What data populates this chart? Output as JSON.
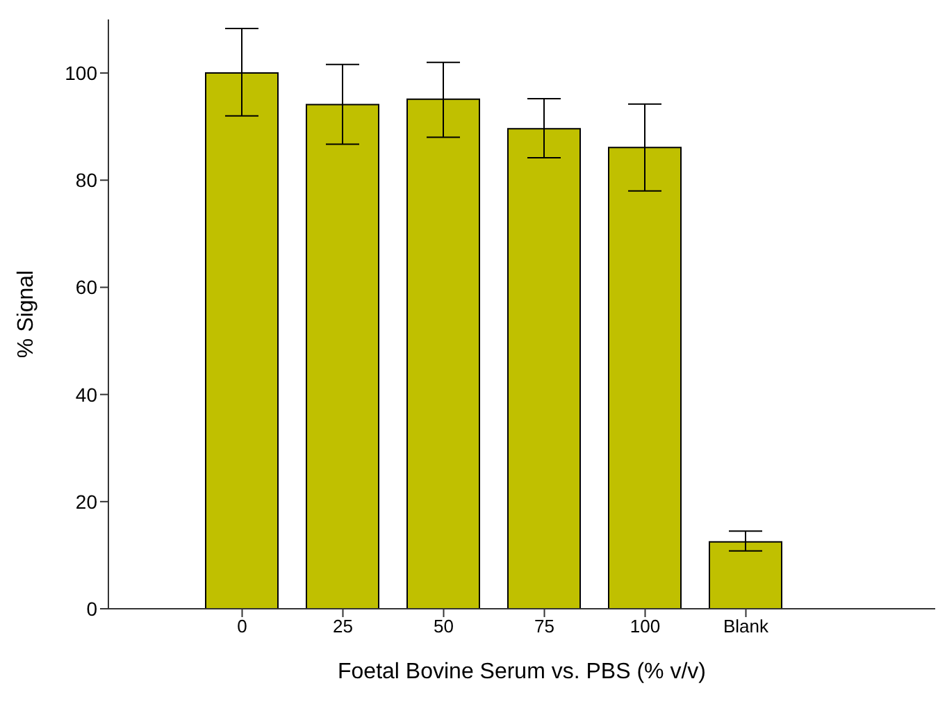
{
  "chart_data": {
    "type": "bar",
    "xlabel": "Foetal Bovine Serum vs. PBS (% v/v)",
    "ylabel": "% Signal",
    "categories": [
      "0",
      "25",
      "50",
      "75",
      "100",
      "Blank"
    ],
    "values": [
      100,
      94.1,
      95.1,
      89.6,
      86.1,
      12.5
    ],
    "errors": [
      [
        92,
        108.3
      ],
      [
        86.7,
        101.6
      ],
      [
        88,
        102
      ],
      [
        84.2,
        95.2
      ],
      [
        78,
        94.2
      ],
      [
        10.8,
        14.5
      ]
    ],
    "color": "#c0c000",
    "ylim": [
      0,
      110
    ],
    "yticks": [
      0,
      20,
      40,
      60,
      80,
      100
    ],
    "grid": false,
    "legend": false
  }
}
